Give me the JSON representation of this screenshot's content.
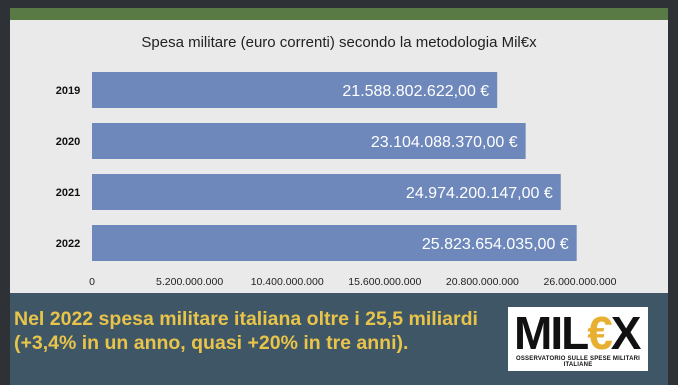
{
  "chart_data": {
    "type": "bar",
    "orientation": "horizontal",
    "title": "Spesa militare (euro correnti) secondo la metodologia Mil€x",
    "categories": [
      "2019",
      "2020",
      "2021",
      "2022"
    ],
    "values": [
      21588802622,
      23104088370,
      24974200147,
      25823654035
    ],
    "value_labels": [
      "21.588.802.622,00 €",
      "23.104.088.370,00 €",
      "24.974.200.147,00 €",
      "25.823.654.035,00 €"
    ],
    "xlim": [
      0,
      26000000000
    ],
    "x_ticks": [
      0,
      5200000000,
      10400000000,
      15600000000,
      20800000000,
      26000000000
    ],
    "x_tick_labels": [
      "0",
      "5.200.000.000",
      "10.400.000.000",
      "15.600.000.000",
      "20.800.000.000",
      "26.000.000.000"
    ],
    "bar_color": "#6e88bc",
    "grid": false
  },
  "headline": "Nel 2022 spesa militare italiana oltre i 25,5 miliardi (+3,4% in un anno, quasi +20% in tre anni).",
  "logo": {
    "mark_prefix": "MIL",
    "mark_euro": "€",
    "mark_suffix": "X",
    "subtitle": "OSSERVATORIO SULLE SPESE MILITARI ITALIANE"
  },
  "colors": {
    "top_bar": "#5a7a45",
    "headline": "#e8c44a",
    "bottom_panel": "#3f5666"
  }
}
